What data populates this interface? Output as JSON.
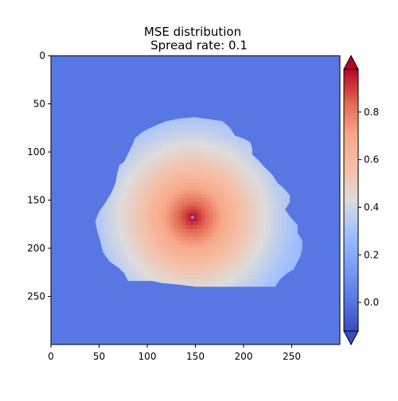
{
  "chart_data": {
    "type": "heatmap",
    "title": "MSE distribution",
    "subtitle": "Spread rate: 0.1",
    "xlabel": "",
    "ylabel": "",
    "x_range": [
      0,
      300
    ],
    "y_range": [
      0,
      300
    ],
    "y_axis_inverted": true,
    "x_ticks": [
      "0",
      "50",
      "100",
      "150",
      "200",
      "250"
    ],
    "y_ticks": [
      "0",
      "50",
      "100",
      "150",
      "200",
      "250"
    ],
    "colormap": "coolwarm",
    "colorbar": {
      "range": [
        -0.12,
        0.98
      ],
      "ticks": [
        "0.0",
        "0.2",
        "0.4",
        "0.6",
        "0.8"
      ],
      "extend": "both"
    },
    "background_value": 0.0,
    "peak": {
      "x": 147,
      "y": 168,
      "value": 0.98
    },
    "region_boundary": [
      [
        150,
        64
      ],
      [
        165,
        66
      ],
      [
        178,
        68
      ],
      [
        186,
        75
      ],
      [
        191,
        83
      ],
      [
        200,
        86
      ],
      [
        207,
        90
      ],
      [
        209,
        97
      ],
      [
        209,
        103
      ],
      [
        215,
        108
      ],
      [
        222,
        116
      ],
      [
        230,
        124
      ],
      [
        235,
        132
      ],
      [
        242,
        138
      ],
      [
        248,
        145
      ],
      [
        248,
        152
      ],
      [
        243,
        160
      ],
      [
        249,
        168
      ],
      [
        256,
        176
      ],
      [
        256,
        184
      ],
      [
        261,
        192
      ],
      [
        261,
        200
      ],
      [
        259,
        208
      ],
      [
        255,
        216
      ],
      [
        252,
        222
      ],
      [
        245,
        226
      ],
      [
        238,
        232
      ],
      [
        233,
        240
      ],
      [
        222,
        240
      ],
      [
        193,
        240
      ],
      [
        175,
        240
      ],
      [
        150,
        240
      ],
      [
        135,
        238
      ],
      [
        115,
        236
      ],
      [
        105,
        234
      ],
      [
        80,
        234
      ],
      [
        76,
        226
      ],
      [
        70,
        220
      ],
      [
        61,
        214
      ],
      [
        54,
        204
      ],
      [
        51,
        192
      ],
      [
        48,
        182
      ],
      [
        46,
        172
      ],
      [
        50,
        162
      ],
      [
        57,
        152
      ],
      [
        63,
        142
      ],
      [
        67,
        132
      ],
      [
        69,
        122
      ],
      [
        71,
        114
      ],
      [
        76,
        110
      ],
      [
        81,
        100
      ],
      [
        85,
        92
      ],
      [
        87,
        86
      ],
      [
        94,
        80
      ],
      [
        101,
        76
      ],
      [
        110,
        72
      ],
      [
        120,
        68
      ],
      [
        135,
        65
      ]
    ],
    "falloff": 0.0108
  }
}
